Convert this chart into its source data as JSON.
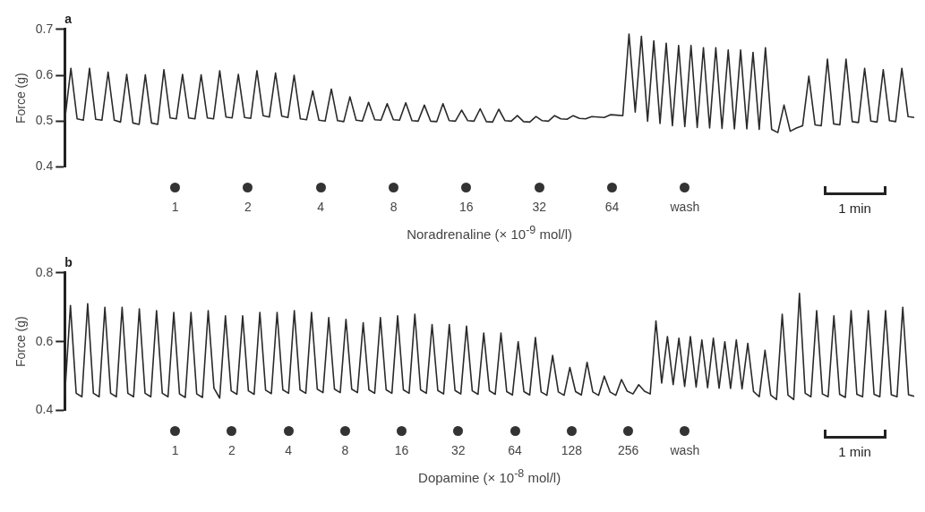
{
  "chart_data": [
    {
      "type": "line",
      "title": "a",
      "ylabel": "Force (g)",
      "xlabel": "Noradrenaline (× 10$^{-9}$ mol/l)",
      "color": "#2a2a2a",
      "ylim": [
        0.4,
        0.7
      ],
      "yticks": [
        0.4,
        0.5,
        0.6,
        0.7
      ],
      "tick_labels": "y",
      "grid": false,
      "annotations": [
        "1",
        "2",
        "4",
        "8",
        "16",
        "32",
        "64",
        "wash",
        "1 min"
      ],
      "categories": [
        null,
        null,
        null,
        null,
        null,
        null,
        null,
        null,
        null,
        null,
        null,
        null,
        null,
        null,
        null,
        null,
        null,
        null,
        null,
        null,
        null,
        null,
        null,
        null,
        null,
        null,
        null,
        null,
        null,
        null,
        null,
        null,
        null,
        null,
        null,
        null,
        null,
        null,
        null,
        null,
        null,
        null,
        null,
        null,
        null,
        null,
        null,
        null,
        null,
        null,
        null,
        null,
        null,
        null,
        null,
        null,
        null,
        null,
        null,
        null,
        null,
        null,
        null,
        null,
        null,
        null,
        null,
        null,
        null,
        null,
        null,
        null,
        null,
        null,
        null,
        null,
        null,
        null,
        null,
        null,
        null,
        null,
        null,
        null,
        null,
        null,
        null,
        null,
        null,
        null,
        null,
        null,
        null,
        null,
        null,
        null,
        null,
        null,
        null,
        null,
        null,
        null,
        null,
        null,
        null,
        null,
        null,
        null,
        null,
        null,
        null,
        null,
        null,
        null,
        null,
        null,
        null,
        null,
        null,
        null,
        null,
        null,
        null,
        null,
        null,
        null,
        null,
        null,
        null,
        null,
        null,
        null,
        null,
        null,
        null,
        null,
        null,
        null
      ],
      "values": [
        0.5,
        0.615,
        0.505,
        0.502,
        0.615,
        0.504,
        0.502,
        0.607,
        0.502,
        0.498,
        0.602,
        0.496,
        0.493,
        0.601,
        0.496,
        0.493,
        0.612,
        0.507,
        0.505,
        0.602,
        0.507,
        0.505,
        0.601,
        0.507,
        0.505,
        0.61,
        0.509,
        0.507,
        0.602,
        0.508,
        0.506,
        0.61,
        0.512,
        0.509,
        0.605,
        0.511,
        0.508,
        0.6,
        0.505,
        0.503,
        0.566,
        0.502,
        0.5,
        0.57,
        0.501,
        0.499,
        0.553,
        0.502,
        0.5,
        0.541,
        0.503,
        0.502,
        0.538,
        0.503,
        0.502,
        0.54,
        0.501,
        0.5,
        0.535,
        0.5,
        0.499,
        0.538,
        0.501,
        0.5,
        0.524,
        0.501,
        0.5,
        0.527,
        0.499,
        0.498,
        0.526,
        0.501,
        0.5,
        0.512,
        0.499,
        0.498,
        0.51,
        0.501,
        0.5,
        0.512,
        0.505,
        0.504,
        0.512,
        0.506,
        0.505,
        0.51,
        0.509,
        0.508,
        0.514,
        0.513,
        0.512,
        0.69,
        0.52,
        0.685,
        0.5,
        0.675,
        0.495,
        0.67,
        0.49,
        0.665,
        0.488,
        0.665,
        0.486,
        0.66,
        0.485,
        0.66,
        0.484,
        0.655,
        0.483,
        0.655,
        0.483,
        0.65,
        0.482,
        0.66,
        0.482,
        0.475,
        0.535,
        0.478,
        0.485,
        0.49,
        0.598,
        0.492,
        0.49,
        0.635,
        0.494,
        0.492,
        0.635,
        0.499,
        0.497,
        0.615,
        0.5,
        0.498,
        0.612,
        0.501,
        0.499,
        0.615,
        0.51,
        0.508
      ]
    },
    {
      "type": "line",
      "title": "b",
      "ylabel": "Force (g)",
      "xlabel": "Dopamine (× 10$^{-8}$ mol/l)",
      "color": "#2a2a2a",
      "ylim": [
        0.4,
        0.8
      ],
      "yticks": [
        0.4,
        0.6,
        0.8
      ],
      "tick_labels": "y",
      "grid": false,
      "annotations": [
        "1",
        "2",
        "4",
        "8",
        "16",
        "32",
        "64",
        "128",
        "256",
        "wash",
        "1 min"
      ],
      "categories": [
        null,
        null,
        null,
        null,
        null,
        null,
        null,
        null,
        null,
        null,
        null,
        null,
        null,
        null,
        null,
        null,
        null,
        null,
        null,
        null,
        null,
        null,
        null,
        null,
        null,
        null,
        null,
        null,
        null,
        null,
        null,
        null,
        null,
        null,
        null,
        null,
        null,
        null,
        null,
        null,
        null,
        null,
        null,
        null,
        null,
        null,
        null,
        null,
        null,
        null,
        null,
        null,
        null,
        null,
        null,
        null,
        null,
        null,
        null,
        null,
        null,
        null,
        null,
        null,
        null,
        null,
        null,
        null,
        null,
        null,
        null,
        null,
        null,
        null,
        null,
        null,
        null,
        null,
        null,
        null,
        null,
        null,
        null,
        null,
        null,
        null,
        null,
        null,
        null,
        null,
        null,
        null,
        null,
        null,
        null,
        null,
        null,
        null,
        null,
        null,
        null,
        null,
        null,
        null,
        null,
        null,
        null,
        null,
        null,
        null,
        null,
        null,
        null,
        null,
        null,
        null,
        null,
        null,
        null,
        null,
        null,
        null,
        null,
        null,
        null,
        null,
        null,
        null,
        null,
        null,
        null,
        null,
        null,
        null,
        null,
        null,
        null,
        null,
        null,
        null,
        null,
        null,
        null,
        null,
        null,
        null,
        null,
        null,
        null
      ],
      "values": [
        0.44,
        0.705,
        0.45,
        0.44,
        0.71,
        0.45,
        0.44,
        0.7,
        0.45,
        0.44,
        0.7,
        0.45,
        0.44,
        0.695,
        0.45,
        0.44,
        0.69,
        0.45,
        0.44,
        0.685,
        0.448,
        0.438,
        0.685,
        0.448,
        0.438,
        0.69,
        0.465,
        0.436,
        0.675,
        0.457,
        0.447,
        0.675,
        0.457,
        0.447,
        0.685,
        0.459,
        0.449,
        0.685,
        0.46,
        0.45,
        0.69,
        0.46,
        0.45,
        0.685,
        0.462,
        0.452,
        0.67,
        0.462,
        0.452,
        0.665,
        0.462,
        0.452,
        0.655,
        0.46,
        0.45,
        0.67,
        0.46,
        0.45,
        0.675,
        0.46,
        0.45,
        0.68,
        0.46,
        0.45,
        0.65,
        0.458,
        0.448,
        0.65,
        0.458,
        0.448,
        0.645,
        0.457,
        0.447,
        0.625,
        0.457,
        0.447,
        0.625,
        0.455,
        0.445,
        0.6,
        0.455,
        0.445,
        0.612,
        0.454,
        0.444,
        0.56,
        0.454,
        0.444,
        0.525,
        0.455,
        0.445,
        0.54,
        0.454,
        0.444,
        0.5,
        0.454,
        0.444,
        0.49,
        0.456,
        0.448,
        0.475,
        0.456,
        0.448,
        0.66,
        0.48,
        0.615,
        0.475,
        0.61,
        0.47,
        0.615,
        0.468,
        0.605,
        0.466,
        0.61,
        0.465,
        0.6,
        0.464,
        0.605,
        0.463,
        0.595,
        0.455,
        0.44,
        0.575,
        0.445,
        0.432,
        0.68,
        0.445,
        0.432,
        0.74,
        0.45,
        0.44,
        0.69,
        0.448,
        0.44,
        0.675,
        0.447,
        0.438,
        0.69,
        0.447,
        0.44,
        0.69,
        0.447,
        0.44,
        0.69,
        0.446,
        0.44,
        0.7,
        0.446,
        0.441
      ]
    }
  ]
}
